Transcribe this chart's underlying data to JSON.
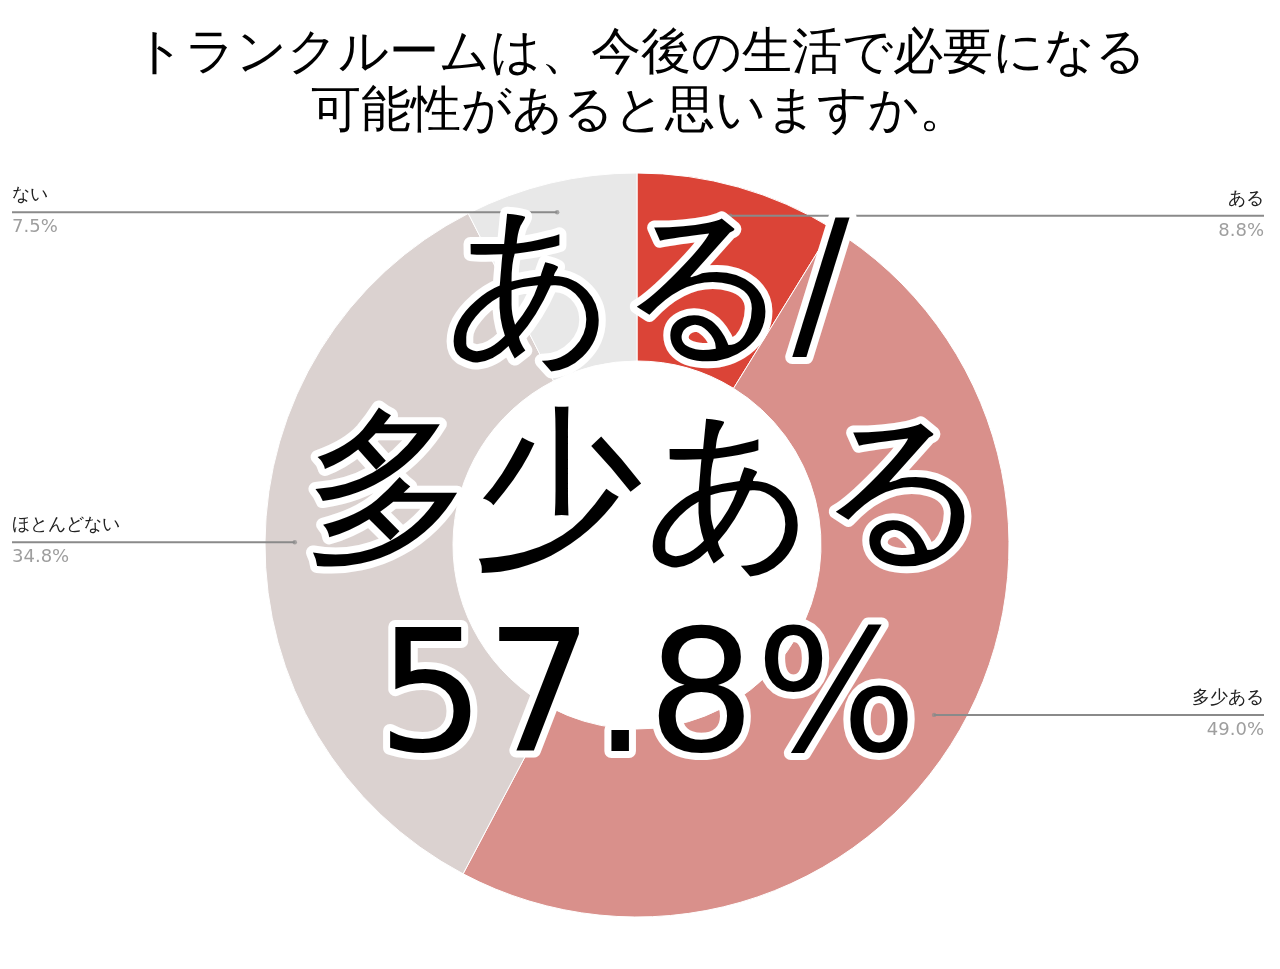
{
  "chart_data": {
    "type": "donut",
    "title": "トランクルームは、今後の生活で必要になる",
    "subtitle": "可能性があると思いますか。",
    "categories": [
      "ある",
      "多少ある",
      "ほとんどない",
      "ない"
    ],
    "values": [
      8.8,
      49.0,
      34.8,
      7.5
    ],
    "value_labels": [
      "8.8%",
      "49.0%",
      "34.8%",
      "7.5%"
    ],
    "colors": [
      "#db4437",
      "#d9908b",
      "#dbd2d0",
      "#e8e8e8"
    ],
    "annotations": [
      "ある/\n多少ある\n57.8%"
    ]
  }
}
